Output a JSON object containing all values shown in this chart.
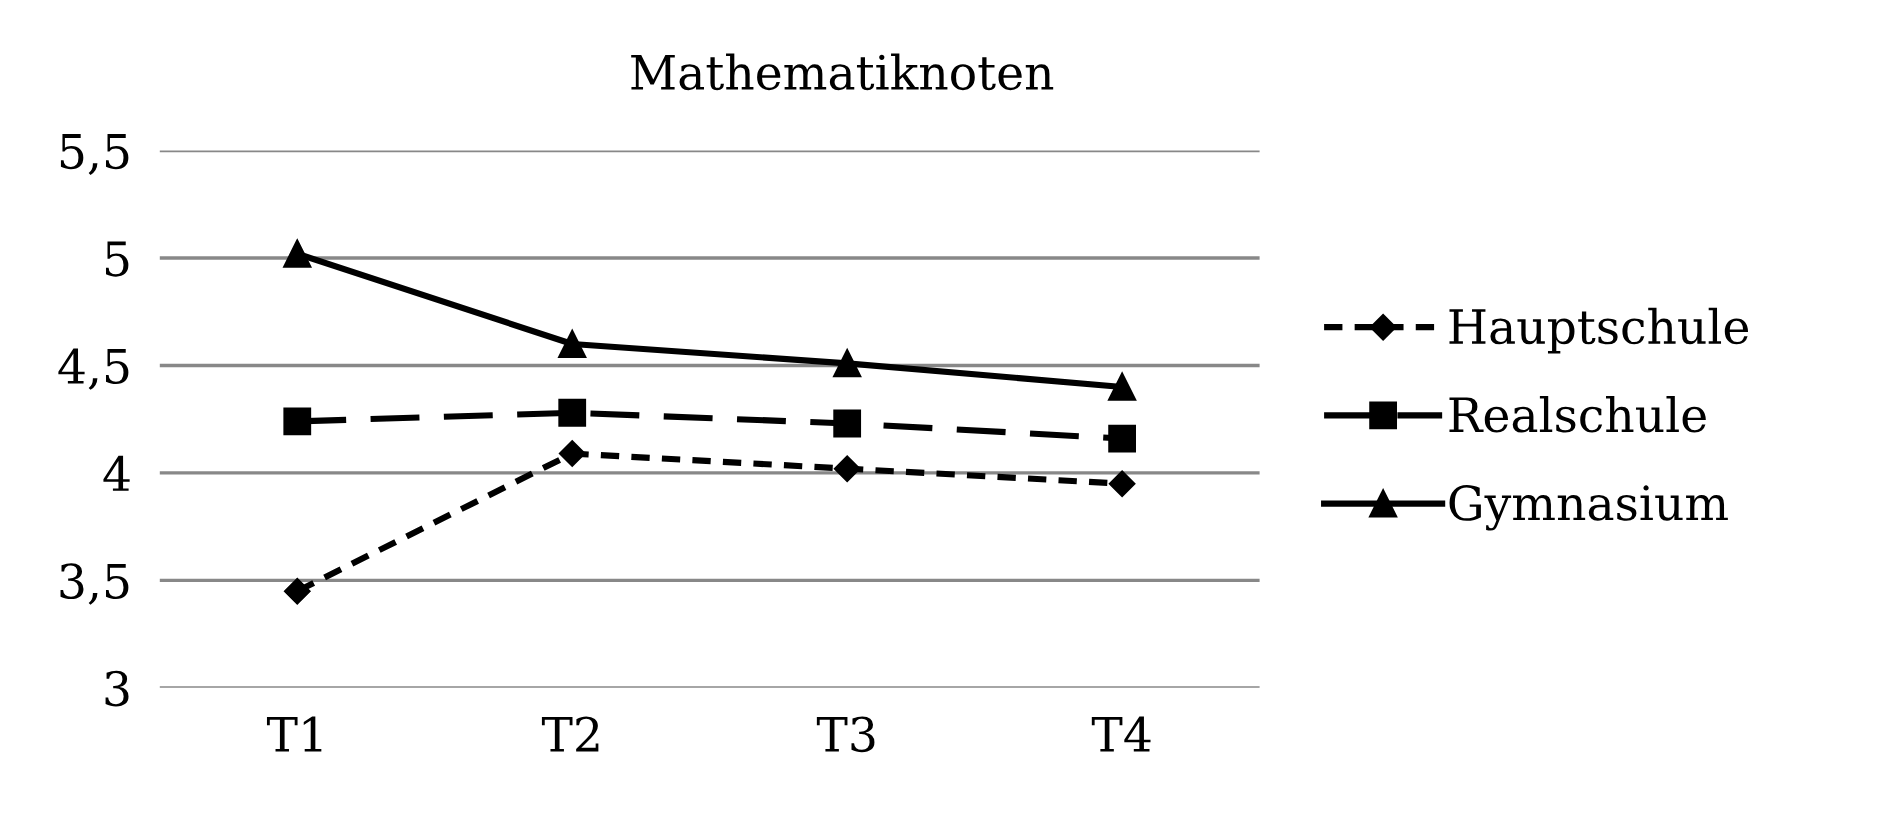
{
  "chart_data": {
    "type": "line",
    "title": "Mathematiknoten",
    "categories": [
      "T1",
      "T2",
      "T3",
      "T4"
    ],
    "series": [
      {
        "name": "Hauptschule",
        "color": "#000000",
        "values": [
          3.45,
          4.09,
          4.02,
          3.95
        ],
        "marker": "diamond",
        "line_style": "dotted"
      },
      {
        "name": "Realschule",
        "color": "#000000",
        "values": [
          4.24,
          4.28,
          4.23,
          4.16
        ],
        "marker": "square",
        "line_style": "dashed"
      },
      {
        "name": "Gymnasium",
        "color": "#000000",
        "values": [
          5.02,
          4.6,
          4.51,
          4.4
        ],
        "marker": "triangle",
        "line_style": "solid"
      }
    ],
    "ylim": [
      3,
      5.5
    ],
    "yticks": [
      {
        "value": 3,
        "label": "3"
      },
      {
        "value": 3.5,
        "label": "3,5"
      },
      {
        "value": 4,
        "label": "4"
      },
      {
        "value": 4.5,
        "label": "4,5"
      },
      {
        "value": 5,
        "label": "5"
      },
      {
        "value": 5.5,
        "label": "5,5"
      }
    ],
    "grid": "y",
    "legend": "right"
  }
}
